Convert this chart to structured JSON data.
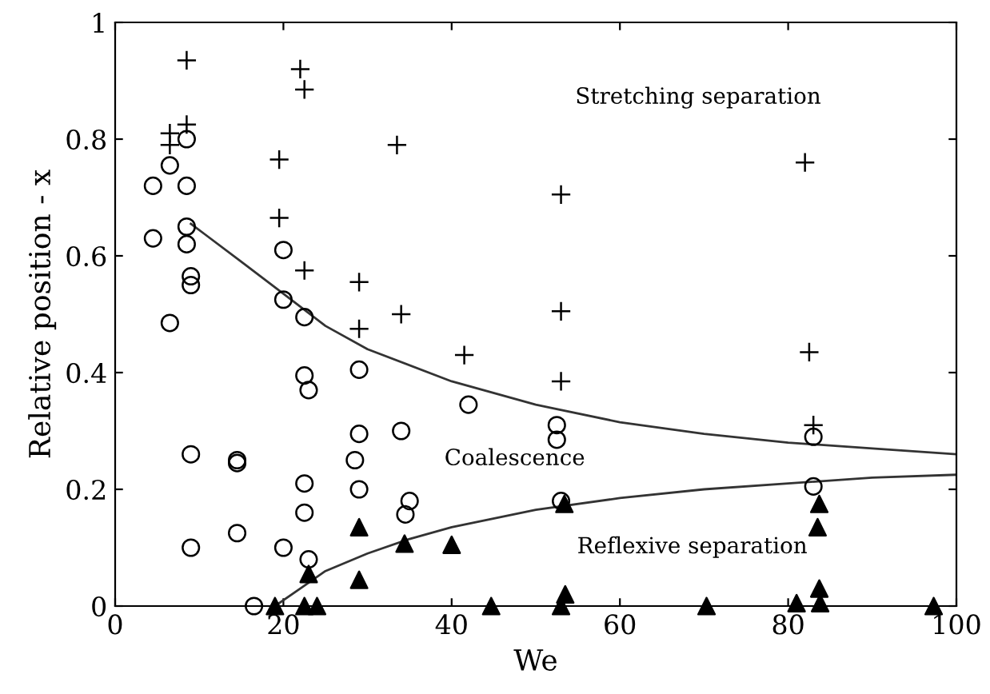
{
  "chart_data": {
    "type": "scatter",
    "xlabel": "We",
    "ylabel": "Relative position - x",
    "xlim": [
      0,
      100
    ],
    "ylim": [
      0,
      1
    ],
    "xticks": [
      0,
      20,
      40,
      60,
      80,
      100
    ],
    "yticks": [
      0,
      0.2,
      0.4,
      0.6,
      0.8,
      1
    ],
    "grid": false,
    "legend": false,
    "series": [
      {
        "marker": "cross",
        "color": "#000000",
        "x": [
          8.5,
          6.5,
          6.5,
          8.5,
          22,
          22.5,
          19.5,
          19.5,
          22.5,
          29,
          29,
          33.5,
          34,
          41.5,
          53,
          53,
          53,
          82,
          82.5,
          83
        ],
        "values": [
          0.935,
          0.81,
          0.79,
          0.825,
          0.92,
          0.885,
          0.765,
          0.665,
          0.575,
          0.555,
          0.475,
          0.79,
          0.5,
          0.43,
          0.705,
          0.505,
          0.385,
          0.76,
          0.435,
          0.31
        ]
      },
      {
        "marker": "circle",
        "color": "#000000",
        "x": [
          4.5,
          4.5,
          6.5,
          6.5,
          8.5,
          8.5,
          8.5,
          8.5,
          9,
          9,
          9,
          9,
          14.5,
          14.5,
          14.5,
          16.5,
          20,
          20,
          20,
          22.5,
          22.5,
          23,
          22.5,
          22.5,
          23,
          28.5,
          29,
          29,
          29,
          34,
          35,
          34.5,
          42,
          52.5,
          52.5,
          53,
          83,
          83
        ],
        "values": [
          0.72,
          0.63,
          0.755,
          0.485,
          0.8,
          0.72,
          0.65,
          0.62,
          0.565,
          0.55,
          0.26,
          0.1,
          0.25,
          0.245,
          0.125,
          0.0,
          0.61,
          0.525,
          0.1,
          0.495,
          0.395,
          0.37,
          0.21,
          0.16,
          0.08,
          0.25,
          0.405,
          0.295,
          0.2,
          0.3,
          0.18,
          0.157,
          0.345,
          0.31,
          0.285,
          0.18,
          0.29,
          0.205
        ]
      },
      {
        "marker": "triangle",
        "color": "#000000",
        "x": [
          19,
          22.5,
          24,
          23,
          29,
          29,
          34.4,
          40,
          44.7,
          53.4,
          53.5,
          53,
          70.3,
          81,
          83.7,
          83.5,
          83.7,
          83.8,
          97.3
        ],
        "values": [
          0.0,
          0.0,
          0.0,
          0.055,
          0.135,
          0.045,
          0.107,
          0.105,
          0.0,
          0.175,
          0.02,
          0.0,
          0.0,
          0.005,
          0.175,
          0.135,
          0.03,
          0.005,
          0.0
        ]
      },
      {
        "type": "line",
        "marker": "none",
        "line_style": "solid",
        "color": "#333333",
        "x": [
          9,
          15,
          20,
          25,
          30,
          40,
          50,
          60,
          70,
          80,
          90,
          100
        ],
        "values": [
          0.655,
          0.59,
          0.535,
          0.48,
          0.44,
          0.385,
          0.345,
          0.315,
          0.295,
          0.28,
          0.27,
          0.26
        ]
      },
      {
        "type": "line",
        "marker": "none",
        "line_style": "solid",
        "color": "#333333",
        "x": [
          19,
          22,
          25,
          30,
          35,
          40,
          50,
          60,
          70,
          80,
          90,
          100
        ],
        "values": [
          0.0,
          0.03,
          0.06,
          0.09,
          0.115,
          0.135,
          0.165,
          0.185,
          0.2,
          0.21,
          0.22,
          0.225
        ]
      }
    ],
    "annotations": [
      "Stretching separation",
      "Coalescence",
      "Reflexive separation"
    ]
  }
}
